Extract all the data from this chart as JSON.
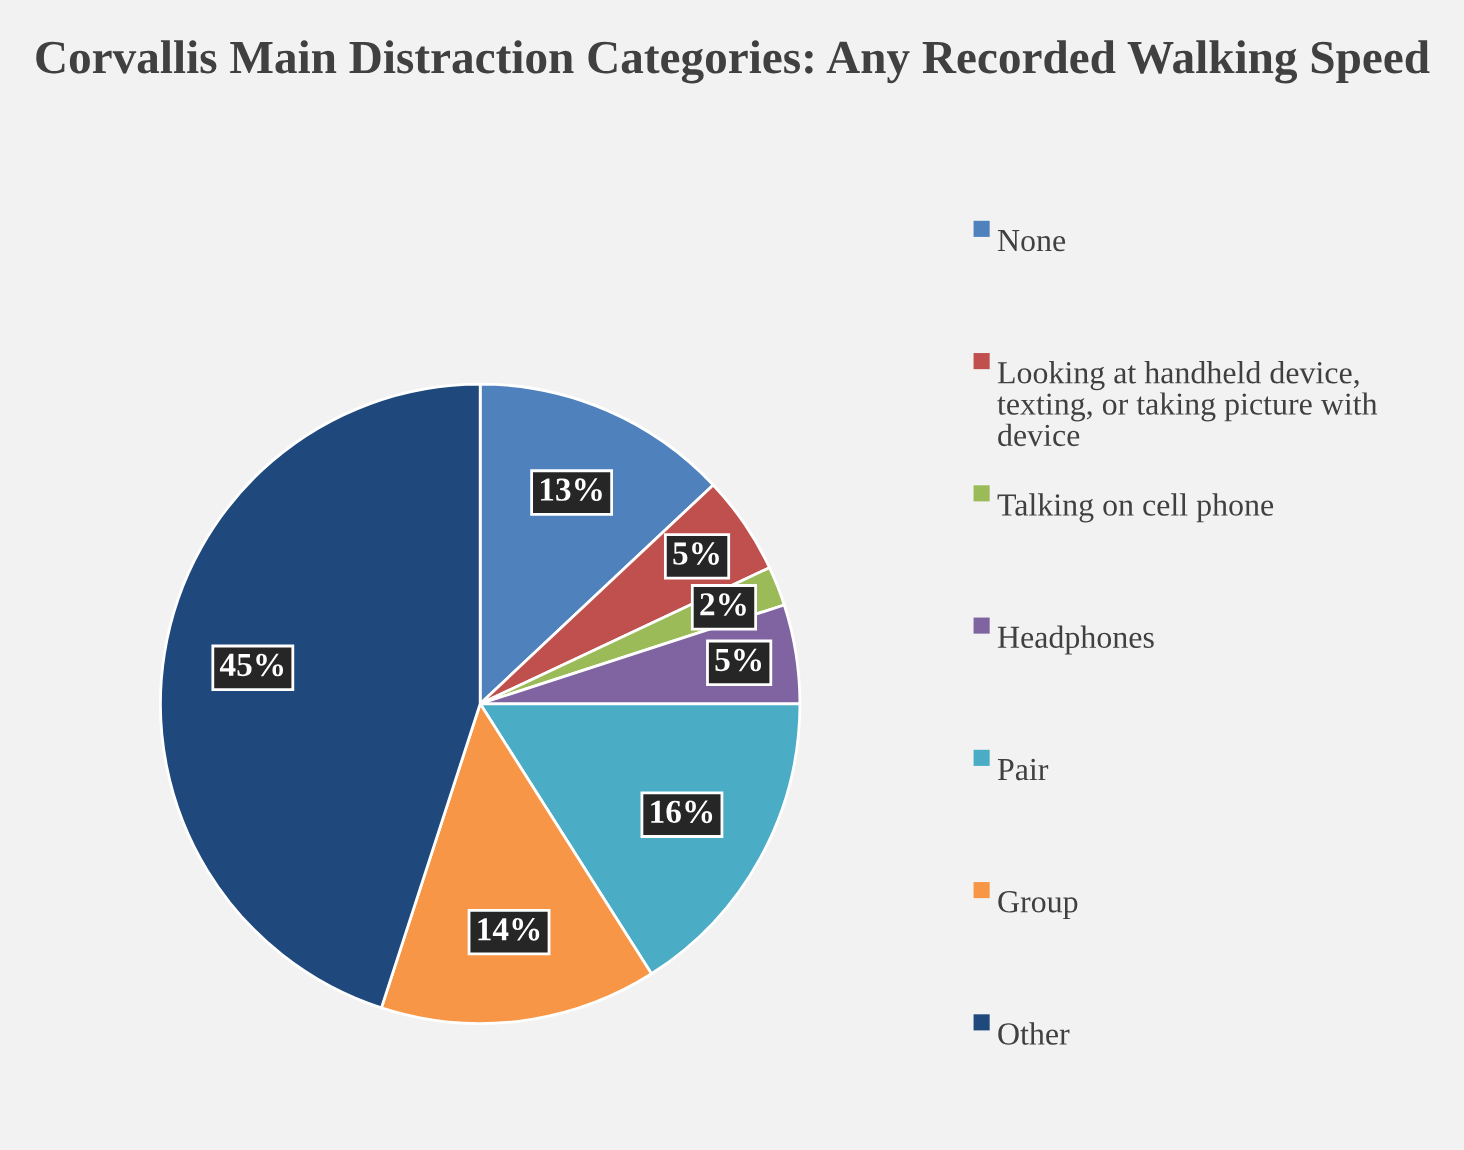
{
  "chart_data": {
    "type": "pie",
    "title": "Corvallis Main Distraction Categories: Any Recorded Walking Speed",
    "categories": [
      "None",
      "Looking at handheld device, texting, or taking picture with device",
      "Talking on cell phone",
      "Headphones",
      "Pair",
      "Group",
      "Other"
    ],
    "values": [
      13,
      5,
      2,
      5,
      16,
      14,
      45
    ],
    "value_labels": [
      "13%",
      "5%",
      "2%",
      "5%",
      "16%",
      "14%",
      "45%"
    ],
    "colors": [
      "#4f81bd",
      "#c0504d",
      "#9bbb59",
      "#8064a2",
      "#4bacc6",
      "#f79646",
      "#1f497d"
    ],
    "legend": "right"
  }
}
